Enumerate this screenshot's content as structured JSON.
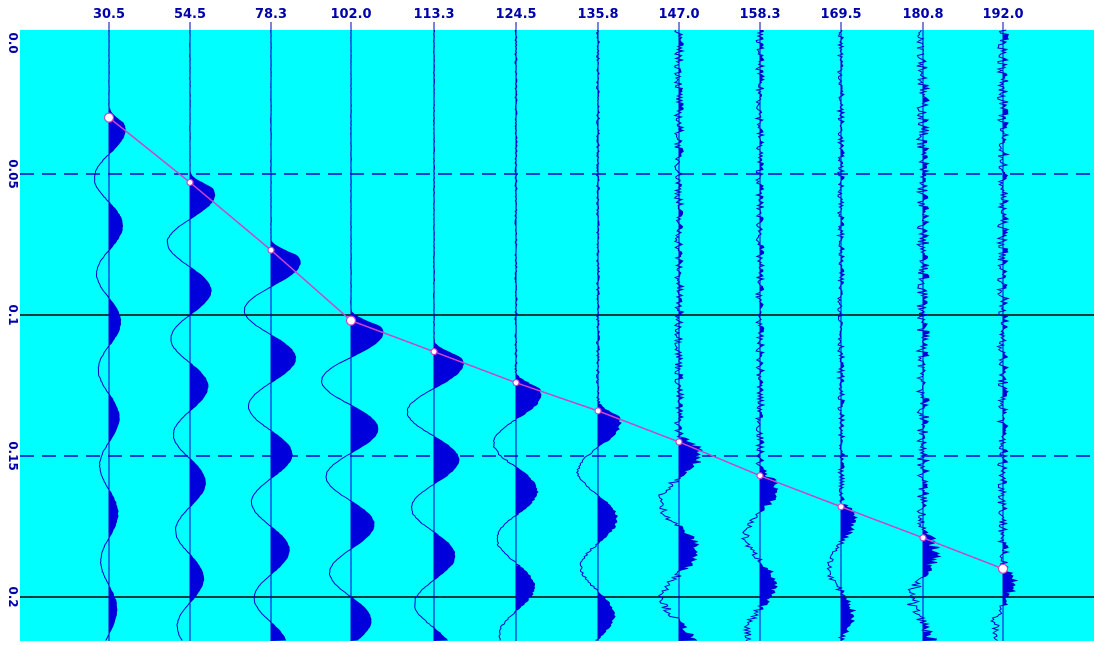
{
  "colors": {
    "plot_background": "#00ffff",
    "frame_background": "#ece9d8",
    "trace": "#0000cc",
    "trace_fill": "#0000dd",
    "pick_line": "#cc44cc",
    "pick_marker": "#ffffff",
    "tick_label": "#0000aa",
    "solid_grid": "#000000",
    "dashed_grid": "#0000cc"
  },
  "chart_data": {
    "type": "seismic-trace-plot",
    "title": "",
    "xlabel": "",
    "ylabel": "",
    "x_tick_labels": [
      "30.5",
      "54.5",
      "78.3",
      "102.0",
      "113.3",
      "124.5",
      "135.8",
      "147.0",
      "158.3",
      "169.5",
      "180.8",
      "192.0"
    ],
    "y_tick_labels": [
      "0.0",
      "0.05",
      "0.1",
      "0.15",
      "0.2"
    ],
    "y_ticks": [
      0.0,
      0.05,
      0.1,
      0.15,
      0.2
    ],
    "ylim": [
      0.0,
      0.213
    ],
    "y_axis_inverted": true,
    "solid_gridlines_y": [
      0.1,
      0.2
    ],
    "dashed_gridlines_y": [
      0.05,
      0.15
    ],
    "first_break_picks": {
      "x": [
        30.5,
        54.5,
        78.3,
        102.0,
        113.3,
        124.5,
        135.8,
        147.0,
        158.3,
        169.5,
        180.8,
        192.0
      ],
      "y": [
        0.03,
        0.053,
        0.077,
        0.102,
        0.113,
        0.124,
        0.134,
        0.145,
        0.157,
        0.168,
        0.179,
        0.19
      ]
    },
    "trace_style": {
      "early_amplitude": [
        0.55,
        0.85,
        1.0,
        1.1,
        1.0,
        0.85,
        0.75,
        0.7,
        0.55,
        0.45,
        0.4,
        0.35
      ],
      "noise_level": [
        0.02,
        0.02,
        0.02,
        0.02,
        0.03,
        0.06,
        0.08,
        0.25,
        0.22,
        0.18,
        0.35,
        0.3
      ]
    },
    "legend": "none",
    "grid": true
  }
}
